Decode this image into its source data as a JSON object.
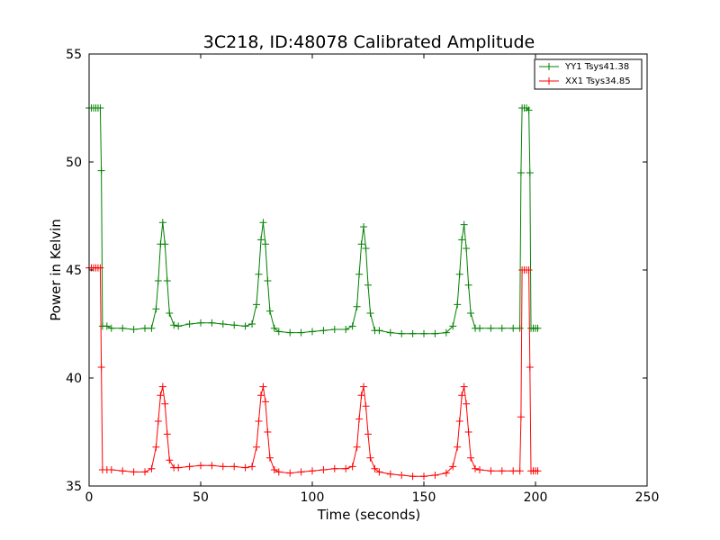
{
  "chart_data": {
    "type": "line",
    "title": "3C218, ID:48078 Calibrated Amplitude",
    "xlabel": "Time (seconds)",
    "ylabel": "Power in Kelvin",
    "xlim": [
      0,
      250
    ],
    "ylim": [
      35,
      55
    ],
    "xticks": [
      0,
      50,
      100,
      150,
      200,
      250
    ],
    "yticks": [
      35,
      40,
      45,
      50,
      55
    ],
    "grid": false,
    "legend_position": "top-right",
    "series": [
      {
        "name": "YY1 Tsys41.38",
        "color": "#008000",
        "marker": "+",
        "x": [
          0,
          1,
          2,
          3,
          4,
          5,
          5.5,
          6,
          8,
          10,
          15,
          20,
          25,
          28,
          30,
          31,
          32,
          33,
          34,
          35,
          36,
          38,
          40,
          45,
          50,
          55,
          60,
          65,
          70,
          73,
          75,
          76,
          77,
          78,
          79,
          80,
          81,
          83,
          85,
          90,
          95,
          100,
          105,
          110,
          115,
          118,
          120,
          121,
          122,
          123,
          124,
          125,
          126,
          128,
          130,
          135,
          140,
          145,
          150,
          155,
          160,
          163,
          165,
          166,
          167,
          168,
          169,
          170,
          171,
          173,
          175,
          180,
          185,
          190,
          193,
          193.5,
          194,
          195,
          196,
          197,
          197.5,
          198,
          199,
          200,
          201
        ],
        "values": [
          52.5,
          52.5,
          52.5,
          52.5,
          52.5,
          52.5,
          49.6,
          42.4,
          42.4,
          42.3,
          42.3,
          42.25,
          42.3,
          42.3,
          43.2,
          44.5,
          46.2,
          47.2,
          46.2,
          44.5,
          43.0,
          42.45,
          42.4,
          42.5,
          42.55,
          42.55,
          42.5,
          42.45,
          42.4,
          42.5,
          43.4,
          44.8,
          46.4,
          47.2,
          46.2,
          44.5,
          43.1,
          42.3,
          42.15,
          42.1,
          42.1,
          42.15,
          42.2,
          42.25,
          42.25,
          42.4,
          43.3,
          44.8,
          46.2,
          47.0,
          46.0,
          44.3,
          43.0,
          42.2,
          42.2,
          42.1,
          42.05,
          42.05,
          42.05,
          42.05,
          42.1,
          42.4,
          43.4,
          44.8,
          46.4,
          47.1,
          46.0,
          44.3,
          43.0,
          42.3,
          42.3,
          42.3,
          42.3,
          42.3,
          42.3,
          49.5,
          52.5,
          52.5,
          52.5,
          52.4,
          49.5,
          42.3,
          42.3,
          42.3,
          42.3
        ]
      },
      {
        "name": "XX1 Tsys34.85",
        "color": "#ff0000",
        "marker": "+",
        "x": [
          0,
          1,
          2,
          3,
          4,
          5,
          5.5,
          6,
          8,
          10,
          15,
          20,
          25,
          28,
          30,
          31,
          32,
          33,
          34,
          35,
          36,
          38,
          40,
          45,
          50,
          55,
          60,
          65,
          70,
          73,
          75,
          76,
          77,
          78,
          79,
          80,
          81,
          83,
          85,
          90,
          95,
          100,
          105,
          110,
          115,
          118,
          120,
          121,
          122,
          123,
          124,
          125,
          126,
          128,
          130,
          135,
          140,
          145,
          150,
          155,
          160,
          163,
          165,
          166,
          167,
          168,
          169,
          170,
          171,
          173,
          175,
          180,
          185,
          190,
          193,
          193.5,
          194,
          195,
          196,
          197,
          197.5,
          198,
          199,
          200,
          201
        ],
        "values": [
          45.1,
          45.1,
          45.1,
          45.1,
          45.1,
          45.1,
          40.5,
          35.75,
          35.75,
          35.75,
          35.7,
          35.65,
          35.65,
          35.8,
          36.8,
          38.0,
          39.2,
          39.6,
          38.8,
          37.4,
          36.2,
          35.85,
          35.85,
          35.9,
          35.95,
          35.95,
          35.9,
          35.9,
          35.85,
          35.9,
          36.8,
          38.0,
          39.2,
          39.6,
          38.9,
          37.5,
          36.3,
          35.75,
          35.65,
          35.6,
          35.65,
          35.7,
          35.75,
          35.8,
          35.8,
          35.9,
          36.8,
          38.1,
          39.2,
          39.6,
          38.7,
          37.4,
          36.3,
          35.8,
          35.65,
          35.55,
          35.5,
          35.45,
          35.45,
          35.5,
          35.6,
          35.9,
          36.8,
          38.0,
          39.2,
          39.6,
          38.8,
          37.5,
          36.3,
          35.8,
          35.75,
          35.7,
          35.7,
          35.7,
          35.7,
          38.2,
          45.0,
          45.0,
          45.0,
          45.0,
          40.5,
          35.7,
          35.7,
          35.7,
          35.7
        ]
      }
    ]
  }
}
